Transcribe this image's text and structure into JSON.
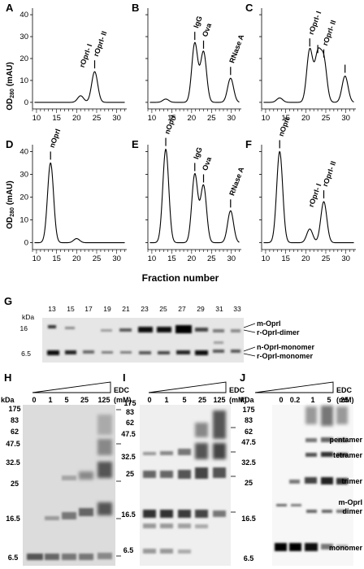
{
  "figure": {
    "chart_data": [
      {
        "panel": "A",
        "type": "line",
        "x_ticks": [
          10,
          15,
          20,
          25,
          30
        ],
        "peaks": [
          {
            "x": 21,
            "y": 3
          },
          {
            "x": 24.5,
            "y": 14
          }
        ],
        "labels": [
          {
            "text": "rOprI- I",
            "x": 21
          },
          {
            "text": "rOprI- II",
            "x": 24.5
          }
        ]
      },
      {
        "panel": "B",
        "type": "line",
        "x_ticks": [
          10,
          15,
          20,
          25,
          30
        ],
        "peaks": [
          {
            "x": 13.5,
            "y": 1.5
          },
          {
            "x": 20.8,
            "y": 27
          },
          {
            "x": 23,
            "y": 23
          },
          {
            "x": 29.8,
            "y": 11
          }
        ],
        "labels": [
          {
            "text": "IgG",
            "x": 20.8
          },
          {
            "text": "Ova",
            "x": 23
          },
          {
            "text": "RNase A",
            "x": 29.8
          }
        ]
      },
      {
        "panel": "C",
        "type": "line",
        "x_ticks": [
          10,
          15,
          20,
          25,
          30
        ],
        "peaks": [
          {
            "x": 13.5,
            "y": 2
          },
          {
            "x": 21,
            "y": 24
          },
          {
            "x": 23,
            "y": 21
          },
          {
            "x": 24.5,
            "y": 19
          },
          {
            "x": 29.8,
            "y": 12
          }
        ],
        "labels": [
          {
            "text": "rOprI- I",
            "x": 21
          },
          {
            "text": "rOprI- II",
            "x": 24.5
          }
        ]
      },
      {
        "panel": "D",
        "type": "line",
        "x_ticks": [
          10,
          15,
          20,
          25,
          30
        ],
        "peaks": [
          {
            "x": 13.5,
            "y": 35
          },
          {
            "x": 20,
            "y": 1.8
          }
        ],
        "labels": [
          {
            "text": "nOprI",
            "x": 13.5
          }
        ]
      },
      {
        "panel": "E",
        "type": "line",
        "x_ticks": [
          10,
          15,
          20,
          25,
          30
        ],
        "peaks": [
          {
            "x": 13.5,
            "y": 41
          },
          {
            "x": 20.8,
            "y": 30
          },
          {
            "x": 23,
            "y": 25
          },
          {
            "x": 29.8,
            "y": 14
          }
        ],
        "labels": [
          {
            "text": "nOprI",
            "x": 13.5
          },
          {
            "text": "IgG",
            "x": 20.8
          },
          {
            "text": "Ova",
            "x": 23
          },
          {
            "text": "RNase A",
            "x": 29.8
          }
        ]
      },
      {
        "panel": "F",
        "type": "line",
        "x_ticks": [
          10,
          15,
          20,
          25,
          30
        ],
        "peaks": [
          {
            "x": 13.5,
            "y": 40
          },
          {
            "x": 21,
            "y": 6
          },
          {
            "x": 24.5,
            "y": 18
          }
        ],
        "labels": [
          {
            "text": "nOprI",
            "x": 13.5
          },
          {
            "text": "rOprI- I",
            "x": 21
          },
          {
            "text": "rOprI- II",
            "x": 24.5
          }
        ]
      }
    ],
    "y_axis": {
      "label": "OD",
      "sub": "280",
      "unit": " (mAU)",
      "ticks": [
        0,
        10,
        20,
        30,
        40
      ]
    },
    "x_axis_label": "Fraction number",
    "panel_letters": [
      "A",
      "B",
      "C",
      "D",
      "E",
      "F",
      "G",
      "H",
      "I",
      "J"
    ],
    "gel_g": {
      "fractions": [
        "13",
        "15",
        "17",
        "19",
        "21",
        "23",
        "25",
        "27",
        "29",
        "31",
        "33"
      ],
      "kda": "kDa",
      "markers": [
        "16",
        "6.5"
      ],
      "right_labels": [
        "m-OprI",
        "r-OprI-dimer",
        "n-OprI-monomer",
        "r-OprI-monomer"
      ]
    },
    "gel_h": {
      "kda": "kDa",
      "lanes": [
        "0",
        "1",
        "5",
        "25",
        "125"
      ],
      "edc": "EDC",
      "mm": "(mM)",
      "markers": [
        "175",
        "83",
        "62",
        "47.5",
        "32.5",
        "25",
        "16.5",
        "6.5"
      ]
    },
    "gel_i": {
      "kda": "kDa",
      "lanes": [
        "0",
        "1",
        "5",
        "25",
        "125"
      ],
      "edc": "EDC",
      "mm": "(mM)",
      "markers": [
        "175",
        "83",
        "62",
        "47.5",
        "32.5",
        "25",
        "16.5",
        "6.5"
      ]
    },
    "gel_j": {
      "kda": "kDa",
      "lanes": [
        "0",
        "0.2",
        "1",
        "5",
        "25"
      ],
      "edc": "EDC",
      "mm": "(mM)",
      "markers": [
        "175",
        "83",
        "62",
        "47.5",
        "32.5",
        "25",
        "16.5",
        "6.5"
      ],
      "right_labels": [
        "pentamer",
        "tetramer",
        "trimer",
        "m-OprI",
        "dimer",
        "monomer"
      ]
    }
  }
}
